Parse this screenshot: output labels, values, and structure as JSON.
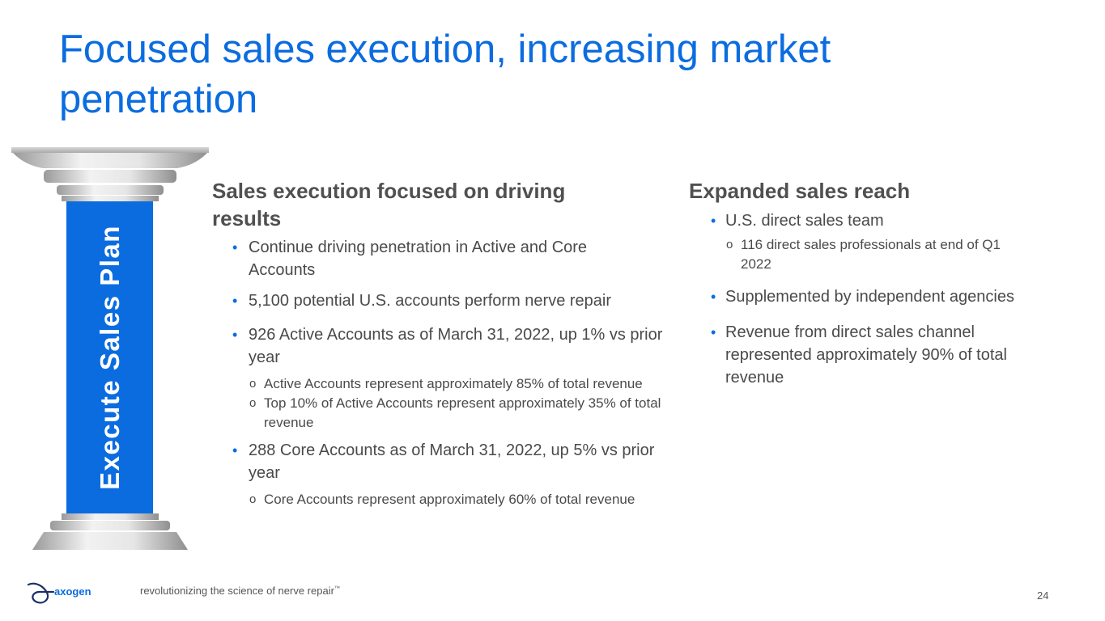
{
  "slide": {
    "title": "Focused sales execution, increasing market penetration",
    "page_number": "24"
  },
  "pillar": {
    "label": "Execute Sales Plan",
    "color": "#0b6ce0"
  },
  "left_column": {
    "heading": "Sales execution focused on driving results",
    "b1": "Continue driving penetration in Active and Core Accounts",
    "b2": "5,100 potential U.S. accounts perform nerve repair",
    "b3": "926 Active Accounts as of March 31, 2022, up 1% vs prior year",
    "b3_sub1": "Active Accounts represent approximately 85% of total revenue",
    "b3_sub2": "Top 10% of Active Accounts represent approximately 35% of total revenue",
    "b4": "288 Core Accounts as of March 31, 2022, up 5% vs prior year",
    "b4_sub1": "Core Accounts represent approximately 60% of total revenue"
  },
  "right_column": {
    "heading": "Expanded sales reach",
    "b1": "U.S. direct sales team",
    "b1_sub1": "116 direct sales professionals at end of Q1 2022",
    "b2": "Supplemented by independent agencies",
    "b3": "Revenue from direct sales channel represented approximately 90% of total revenue"
  },
  "footer": {
    "brand": "axogen",
    "tagline": "revolutionizing the science of nerve repair",
    "trademark": "™"
  }
}
